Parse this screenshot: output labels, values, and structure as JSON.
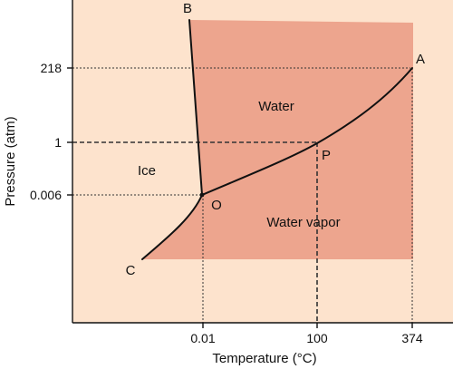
{
  "diagram": {
    "type": "phase-diagram",
    "xlabel": "Temperature (°C)",
    "ylabel": "Pressure (atm)",
    "x_ticks": [
      "0.01",
      "100",
      "374"
    ],
    "y_ticks": [
      "218",
      "1",
      "0.006"
    ],
    "regions": {
      "ice": "Ice",
      "water": "Water",
      "vapor": "Water vapor"
    },
    "points": {
      "A": "A",
      "B": "B",
      "C": "C",
      "O": "O",
      "P": "P"
    },
    "colors": {
      "background": "#fde3cd",
      "shaded": "#eda58e",
      "curve": "#111111"
    }
  }
}
